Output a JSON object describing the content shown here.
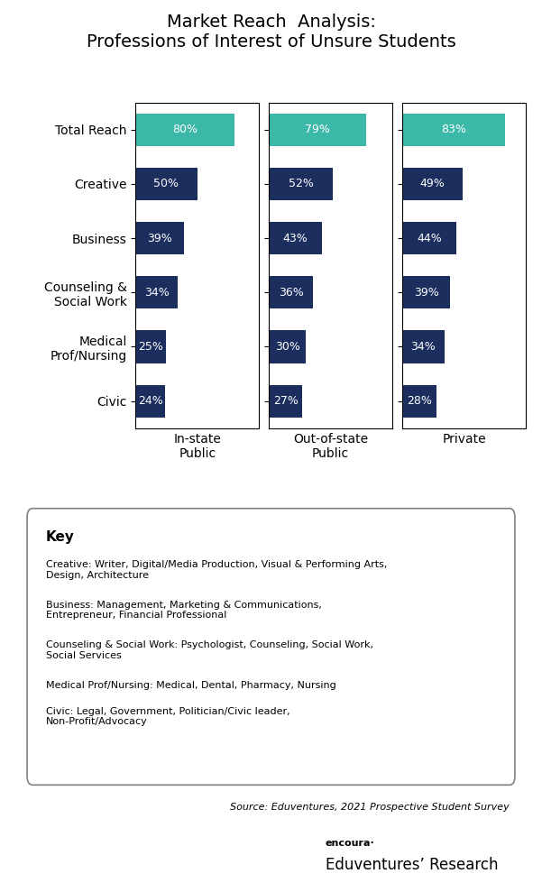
{
  "title": "Market Reach  Analysis:\nProfessions of Interest of Unsure Students",
  "annotations": [
    "Key",
    "Creative: Writer, Digital/Media Production, Visual & Performing Arts,\nDesign, Architecture",
    "Business: Management, Marketing & Communications,\nEntrepreneur, Financial Professional",
    "Counseling & Social Work: Psychologist, Counseling, Social Work,\nSocial Services",
    "Medical Prof/Nursing: Medical, Dental, Pharmacy, Nursing",
    "Civic: Legal, Government, Politician/Civic leader,\nNon-Profit/Advocacy",
    "Source: Eduventures, 2021 Prospective Student Survey",
    "encoura·",
    "Eduventures’ Research"
  ],
  "chart_data": [
    {
      "type": "bar",
      "orientation": "horizontal",
      "xlabel": "In-state\nPublic",
      "categories": [
        "Total Reach",
        "Creative",
        "Business",
        "Counseling &\nSocial Work",
        "Medical\nProf/Nursing",
        "Civic"
      ],
      "values": [
        80,
        50,
        39,
        34,
        25,
        24
      ],
      "value_labels": [
        "80%",
        "50%",
        "39%",
        "34%",
        "25%",
        "24%"
      ],
      "colors": [
        "#3cb8a8",
        "#1b2e5e",
        "#1b2e5e",
        "#1b2e5e",
        "#1b2e5e",
        "#1b2e5e"
      ],
      "data_labels": true,
      "xlim": [
        0,
        100
      ],
      "tick_labels": "y"
    },
    {
      "type": "bar",
      "orientation": "horizontal",
      "xlabel": "Out-of-state\nPublic",
      "categories": [
        "Total Reach",
        "Creative",
        "Business",
        "Counseling &\nSocial Work",
        "Medical\nProf/Nursing",
        "Civic"
      ],
      "values": [
        79,
        52,
        43,
        36,
        30,
        27
      ],
      "value_labels": [
        "79%",
        "52%",
        "43%",
        "36%",
        "30%",
        "27%"
      ],
      "colors": [
        "#3cb8a8",
        "#1b2e5e",
        "#1b2e5e",
        "#1b2e5e",
        "#1b2e5e",
        "#1b2e5e"
      ],
      "data_labels": true,
      "xlim": [
        0,
        100
      ],
      "tick_labels": false
    },
    {
      "type": "bar",
      "orientation": "horizontal",
      "xlabel": "Private",
      "categories": [
        "Total Reach",
        "Creative",
        "Business",
        "Counseling &\nSocial Work",
        "Medical\nProf/Nursing",
        "Civic"
      ],
      "values": [
        83,
        49,
        44,
        39,
        34,
        28
      ],
      "value_labels": [
        "83%",
        "49%",
        "44%",
        "39%",
        "34%",
        "28%"
      ],
      "colors": [
        "#3cb8a8",
        "#1b2e5e",
        "#1b2e5e",
        "#1b2e5e",
        "#1b2e5e",
        "#1b2e5e"
      ],
      "data_labels": true,
      "xlim": [
        0,
        100
      ],
      "tick_labels": false
    }
  ]
}
